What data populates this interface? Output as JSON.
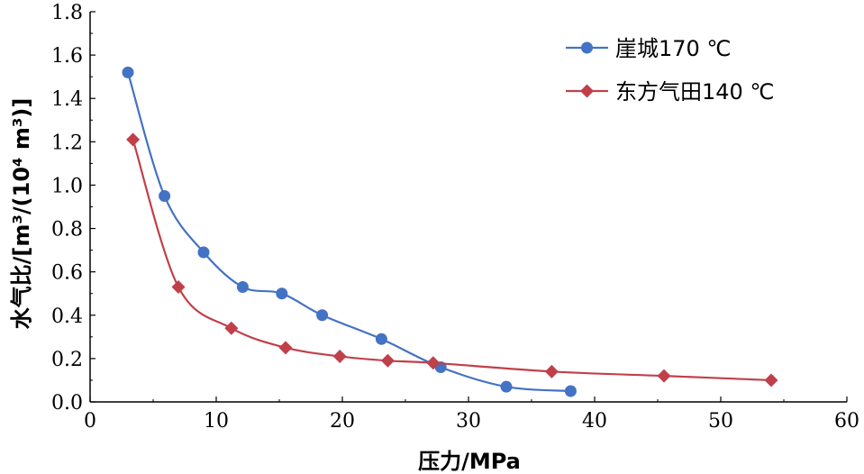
{
  "chart_data": {
    "type": "line",
    "xlabel": "压力/MPa",
    "ylabel": "水气比/[m³/(10⁴ m³)]",
    "xlim": [
      0,
      60
    ],
    "ylim": [
      0.0,
      1.8
    ],
    "xticks": [
      "0",
      "10",
      "20",
      "30",
      "40",
      "50",
      "60"
    ],
    "yticks": [
      "0.0",
      "0.2",
      "0.4",
      "0.6",
      "0.8",
      "1.0",
      "1.2",
      "1.4",
      "1.6",
      "1.8"
    ],
    "legend_position": "top-right",
    "grid": false,
    "series": [
      {
        "name": "崖城170 ℃",
        "color": "#4472c4",
        "marker": "circle",
        "x": [
          3.0,
          5.9,
          9.0,
          12.1,
          15.2,
          18.4,
          23.1,
          27.8,
          33.0,
          38.1
        ],
        "y": [
          1.52,
          0.95,
          0.69,
          0.53,
          0.5,
          0.4,
          0.29,
          0.16,
          0.07,
          0.05
        ]
      },
      {
        "name": "东方气田140 ℃",
        "color": "#c0404a",
        "marker": "diamond",
        "x": [
          3.4,
          7.0,
          11.2,
          15.5,
          19.8,
          23.6,
          27.2,
          36.6,
          45.5,
          54.0
        ],
        "y": [
          1.21,
          0.53,
          0.34,
          0.25,
          0.21,
          0.19,
          0.18,
          0.14,
          0.12,
          0.1
        ]
      }
    ]
  }
}
